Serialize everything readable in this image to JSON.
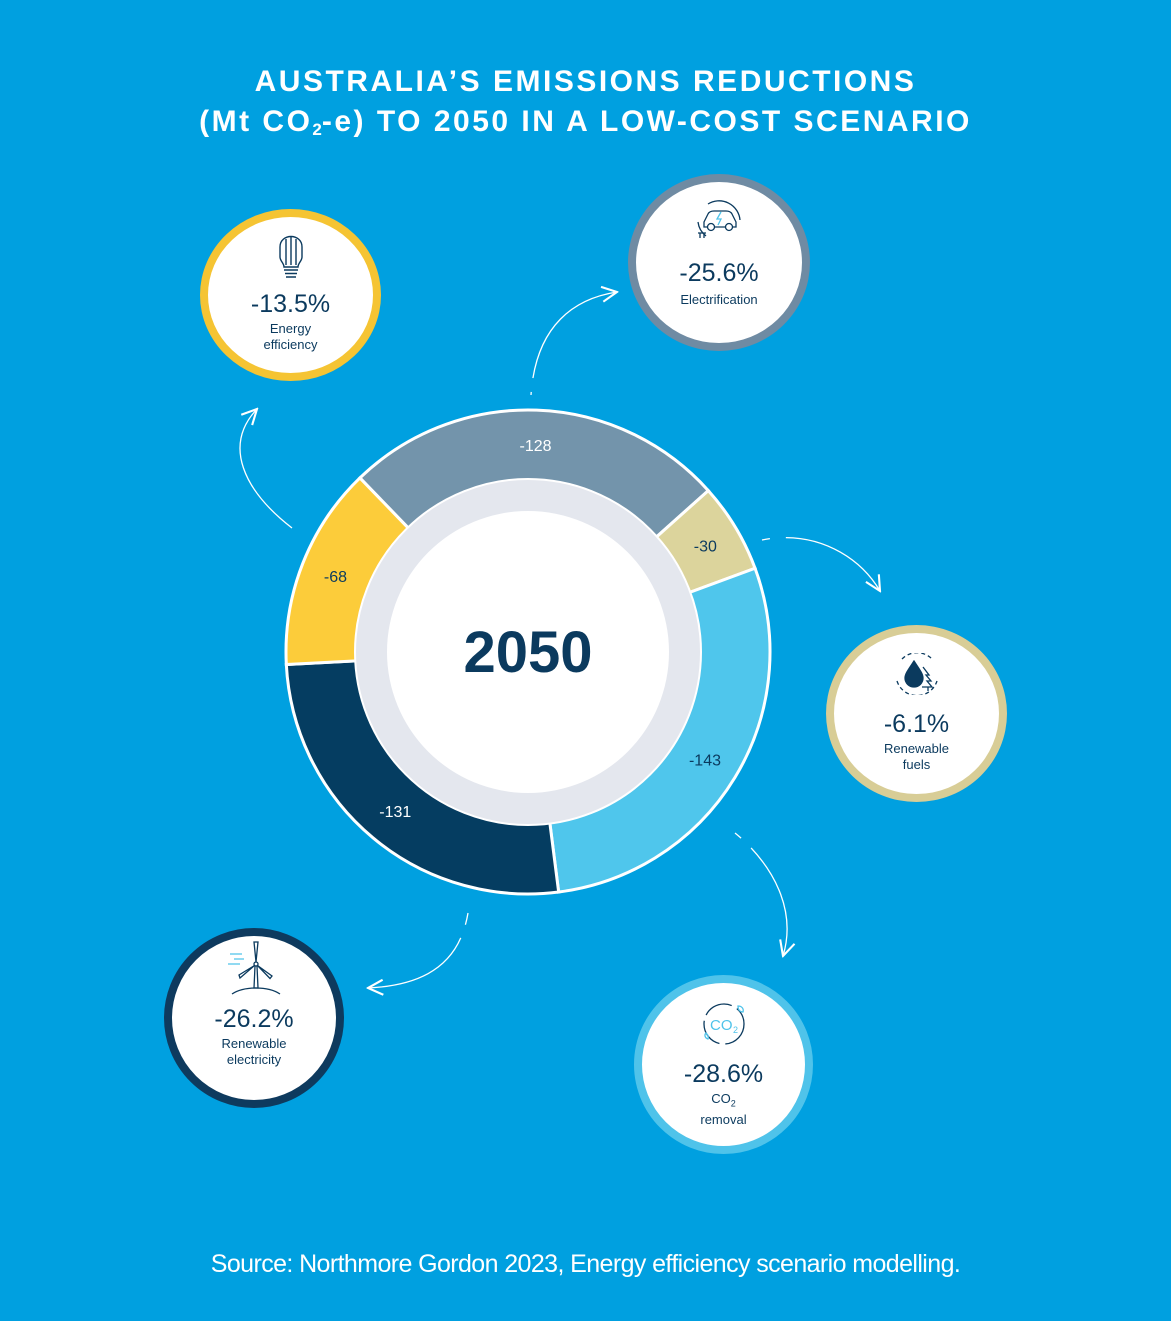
{
  "title": {
    "line1": "AUSTRALIA’S EMISSIONS REDUCTIONS",
    "line2_prefix": "(Mt CO",
    "line2_sub": "2",
    "line2_suffix": "-e) TO 2050 IN A LOW-COST SCENARIO"
  },
  "center_label": "2050",
  "source": "Source: Northmore Gordon 2023, Energy efficiency scenario modelling.",
  "chart_data": {
    "type": "pie",
    "title": "AUSTRALIA’S EMISSIONS REDUCTIONS (Mt CO2-e) TO 2050 IN A LOW-COST SCENARIO",
    "center_text": "2050",
    "categories": [
      "Electrification",
      "Renewable fuels",
      "CO2 removal",
      "Renewable electricity",
      "Energy efficiency"
    ],
    "values": [
      -128,
      -30,
      -143,
      -131,
      -68
    ],
    "value_labels": [
      "-128",
      "-30",
      "-143",
      "-131",
      "-68"
    ],
    "shares": [
      "-25.6%",
      "-6.1%",
      "-28.6%",
      "-26.2%",
      "-13.5%"
    ],
    "colors": [
      "#7394ab",
      "#dcd49c",
      "#4fc6ec",
      "#053d61",
      "#fccc3a"
    ]
  },
  "bubbles": {
    "efficiency": {
      "pct": "-13.5%",
      "label1": "Energy",
      "label2": "efficiency",
      "icon": "light-bulb-icon"
    },
    "electrification": {
      "pct": "-25.6%",
      "label": "Electrification",
      "icon": "electric-car-icon"
    },
    "fuels": {
      "pct": "-6.1%",
      "label1": "Renewable",
      "label2": "fuels",
      "icon": "water-drop-tree-icon"
    },
    "co2": {
      "pct": "-28.6%",
      "label1": "CO",
      "label1_sub": "2",
      "label2": "removal",
      "icon": "co2-cycle-icon",
      "icon_text": "CO",
      "icon_text_sub": "2"
    },
    "renewable": {
      "pct": "-26.2%",
      "label1": "Renewable",
      "label2": "electricity",
      "icon": "wind-turbine-icon"
    }
  },
  "colors": {
    "background": "#00a0e0",
    "ring_gap": "#e4e7ee",
    "text_dark": "#0b3a5e"
  }
}
